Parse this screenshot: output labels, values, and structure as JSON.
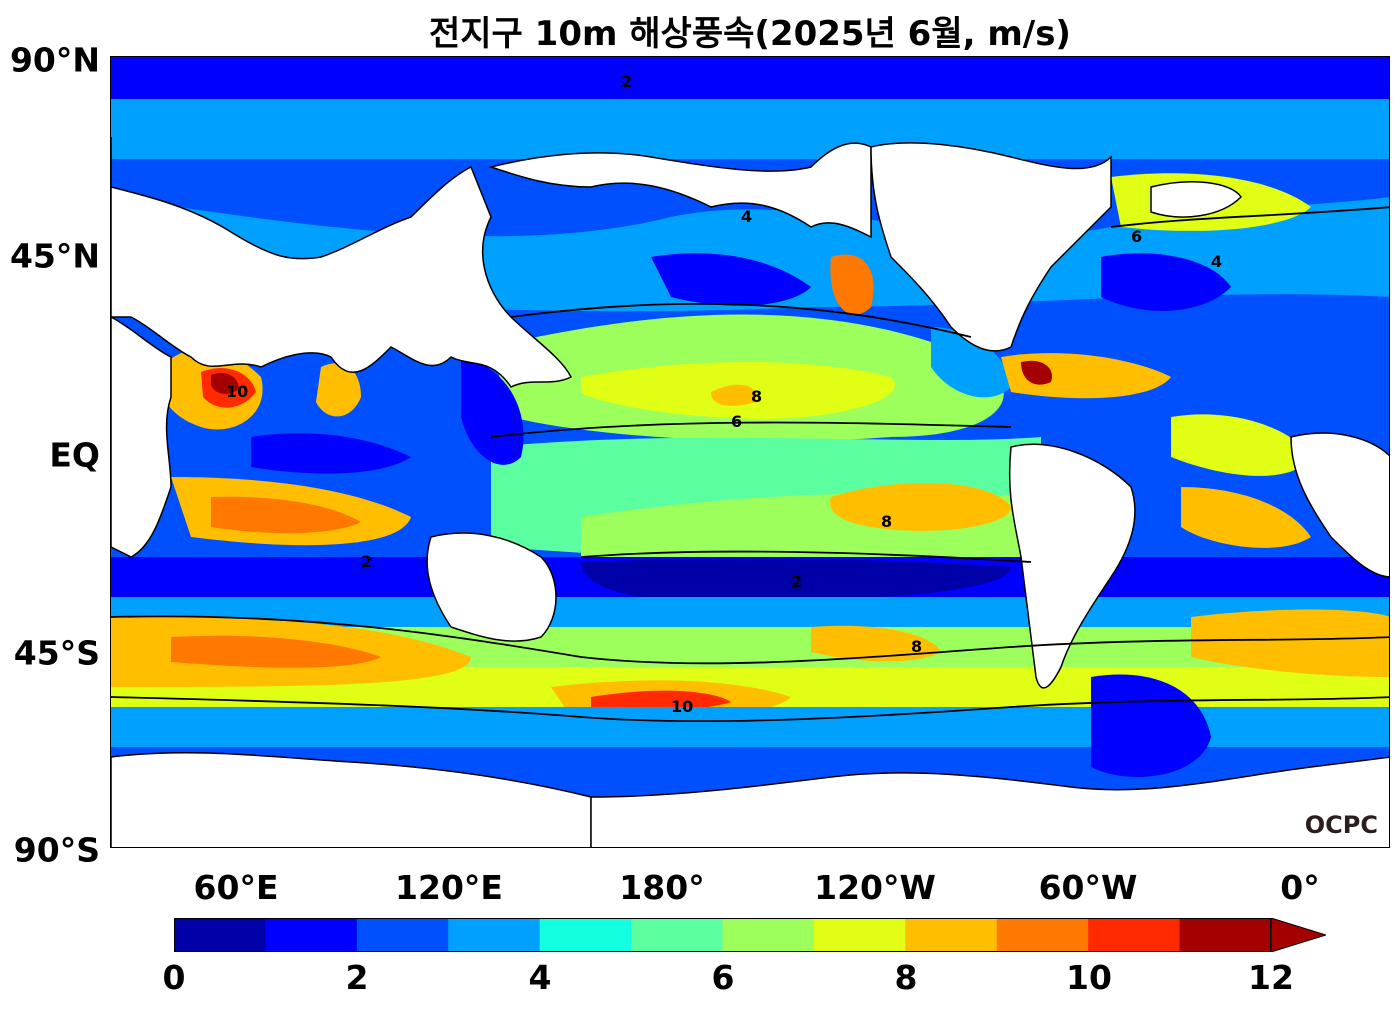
{
  "title": "전지구 10m 해상풍속(2025년 6월, m/s)",
  "map": {
    "lat_ticks": [
      "90°N",
      "45°N",
      "EQ",
      "45°S",
      "90°S"
    ],
    "lon_ticks": [
      "60°E",
      "120°E",
      "180°",
      "120°W",
      "60°W",
      "0°"
    ],
    "contour_labels": [
      "2",
      "4",
      "6",
      "8",
      "10"
    ],
    "logo": "OCPC"
  },
  "colorbar": {
    "ticks": [
      "0",
      "2",
      "4",
      "6",
      "8",
      "10",
      "12"
    ],
    "colors": [
      "#0000a8",
      "#0000ff",
      "#0050ff",
      "#00a0ff",
      "#12ffe0",
      "#5cffa0",
      "#9cff5c",
      "#e0ff14",
      "#ffbf00",
      "#ff7800",
      "#ff2a00",
      "#a40000"
    ],
    "extend": "max"
  }
}
